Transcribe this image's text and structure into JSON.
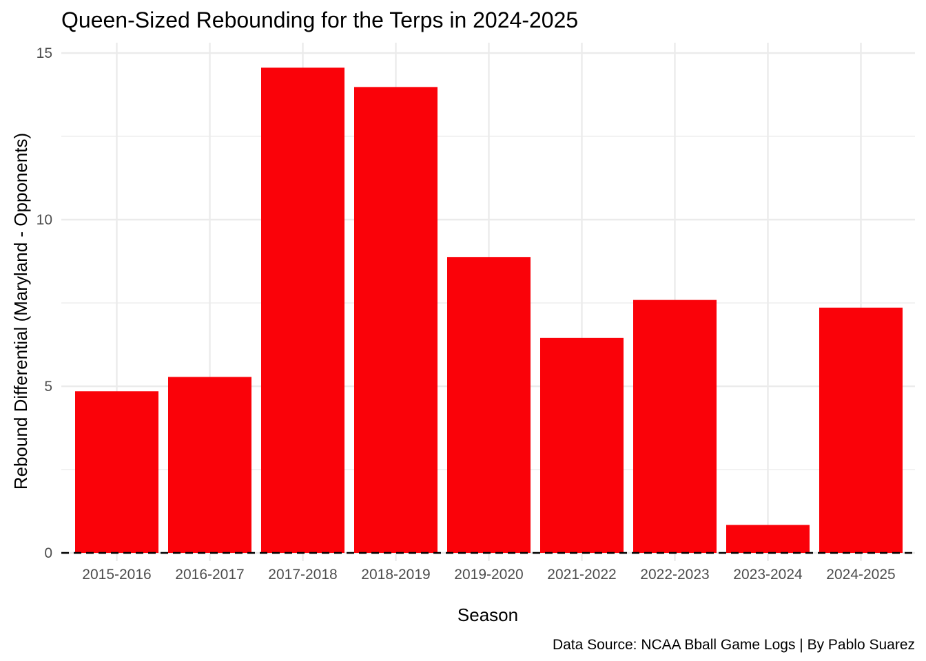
{
  "chart_data": {
    "type": "bar",
    "title": "Queen-Sized Rebounding for the Terps in 2024-2025",
    "xlabel": "Season",
    "ylabel": "Rebound Differential (Maryland - Opponents)",
    "caption": "Data Source: NCAA Bball Game Logs | By Pablo Suarez",
    "categories": [
      "2015-2016",
      "2016-2017",
      "2017-2018",
      "2018-2019",
      "2019-2020",
      "2021-2022",
      "2022-2023",
      "2023-2024",
      "2024-2025"
    ],
    "values": [
      4.85,
      5.28,
      14.56,
      13.98,
      8.88,
      6.45,
      7.59,
      0.84,
      7.36
    ],
    "ylim": [
      0,
      15
    ],
    "yticks": [
      "0",
      "5",
      "10",
      "15"
    ],
    "ytick_values": [
      0,
      5,
      10,
      15
    ],
    "reference_line": {
      "y": 0,
      "style": "dashed",
      "color": "#000000"
    },
    "bar_color": "#fa0209",
    "grid": true,
    "grid_color": "#ebebeb",
    "legend": "none"
  }
}
